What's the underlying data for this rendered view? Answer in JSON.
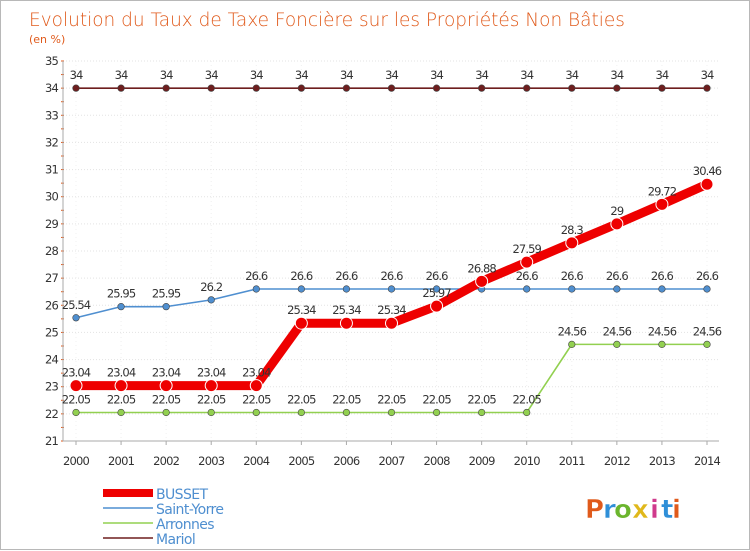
{
  "chart_data": {
    "type": "line",
    "title": "Evolution du Taux de Taxe Foncière sur les Propriétés Non Bâties",
    "ylabel": "(en %)",
    "xlabel": "",
    "ylim": [
      21,
      35
    ],
    "yticks": [
      21,
      22,
      23,
      24,
      25,
      26,
      27,
      28,
      29,
      30,
      31,
      32,
      33,
      34,
      35
    ],
    "x": [
      "2000",
      "2001",
      "2002",
      "2003",
      "2004",
      "2005",
      "2006",
      "2007",
      "2008",
      "2009",
      "2010",
      "2011",
      "2012",
      "2013",
      "2014"
    ],
    "grid": "horizontal",
    "series": [
      {
        "name": "BUSSET",
        "color": "#ee0000",
        "emphasis": true,
        "values": [
          23.04,
          23.04,
          23.04,
          23.04,
          23.04,
          25.34,
          25.34,
          25.34,
          25.97,
          26.88,
          27.59,
          28.3,
          29,
          29.72,
          30.46
        ],
        "labels": [
          "23.04",
          "23.04",
          "23.04",
          "23.04",
          "23.04",
          "25.34",
          "25.34",
          "25.34",
          "25.97",
          "26.88",
          "27.59",
          "28.3",
          "29",
          "29.72",
          "30.46"
        ]
      },
      {
        "name": "Saint-Yorre",
        "color": "#4f8fd0",
        "emphasis": false,
        "values": [
          25.54,
          25.95,
          25.95,
          26.2,
          26.6,
          26.6,
          26.6,
          26.6,
          26.6,
          26.6,
          26.6,
          26.6,
          26.6,
          26.6,
          26.6
        ],
        "labels": [
          "25.54",
          "25.95",
          "25.95",
          "26.2",
          "26.6",
          "26.6",
          "26.6",
          "26.6",
          "26.6",
          "",
          "26.6",
          "26.6",
          "26.6",
          "26.6",
          "26.6"
        ]
      },
      {
        "name": "Arronnes",
        "color": "#92d050",
        "emphasis": false,
        "values": [
          22.05,
          22.05,
          22.05,
          22.05,
          22.05,
          22.05,
          22.05,
          22.05,
          22.05,
          22.05,
          22.05,
          24.56,
          24.56,
          24.56,
          24.56
        ],
        "labels": [
          "22.05",
          "22.05",
          "22.05",
          "22.05",
          "22.05",
          "22.05",
          "22.05",
          "22.05",
          "22.05",
          "22.05",
          "22.05",
          "24.56",
          "24.56",
          "24.56",
          "24.56"
        ]
      },
      {
        "name": "Mariol",
        "color": "#6e1e1e",
        "emphasis": false,
        "values": [
          34,
          34,
          34,
          34,
          34,
          34,
          34,
          34,
          34,
          34,
          34,
          34,
          34,
          34,
          34
        ],
        "labels": [
          "34",
          "34",
          "34",
          "34",
          "34",
          "34",
          "34",
          "34",
          "34",
          "34",
          "34",
          "34",
          "34",
          "34",
          "34"
        ]
      }
    ],
    "legend_position": "bottom-left"
  },
  "brand": {
    "letters": [
      "P",
      "r",
      "o",
      "x",
      "i",
      "t",
      "i"
    ],
    "colors": [
      "#e05a1b",
      "#2f8fd8",
      "#6bb52d",
      "#e0b81b",
      "#d03a8c",
      "#2f8fd8",
      "#e05a1b"
    ]
  }
}
